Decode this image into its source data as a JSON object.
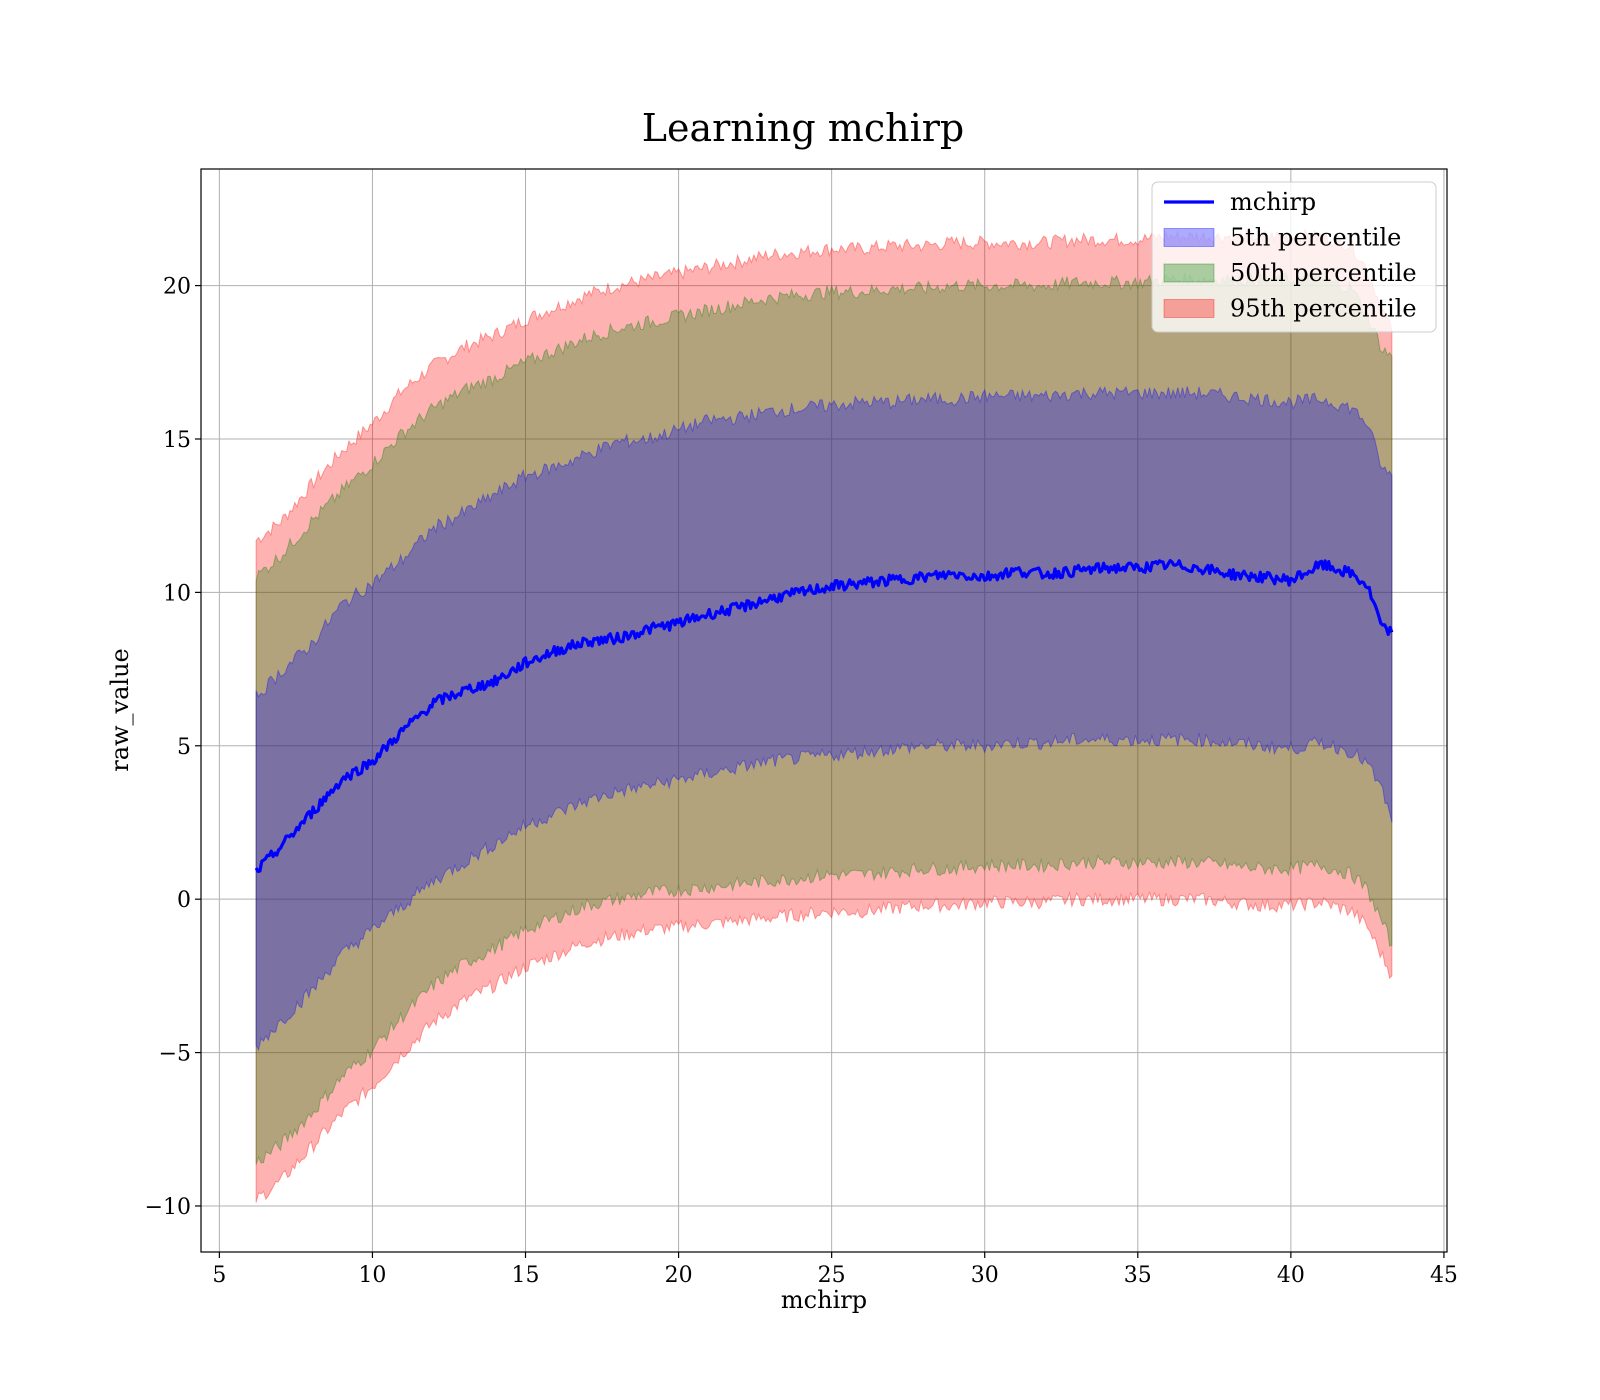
{
  "chart_data": {
    "type": "area",
    "title": "Learning mchirp",
    "xlabel": "mchirp",
    "ylabel": "raw_value",
    "xlim": [
      4.4,
      45.1
    ],
    "ylim": [
      -11.5,
      23.8
    ],
    "xticks": [
      5,
      10,
      15,
      20,
      25,
      30,
      35,
      40,
      45
    ],
    "xtick_labels": [
      "5",
      "10",
      "15",
      "20",
      "25",
      "30",
      "35",
      "40",
      "45"
    ],
    "yticks": [
      -10,
      -5,
      0,
      5,
      10,
      15,
      20
    ],
    "ytick_labels": [
      "−10",
      "−5",
      "0",
      "5",
      "10",
      "15",
      "20"
    ],
    "grid": true,
    "legend_position": "top-right",
    "x": [
      6.2,
      7,
      8,
      9,
      10,
      11,
      12,
      13,
      14,
      15,
      16,
      17,
      18,
      19,
      20,
      21,
      22,
      23,
      24,
      25,
      26,
      27,
      28,
      29,
      30,
      31,
      32,
      33,
      34,
      35,
      36,
      37,
      38,
      39,
      40,
      41,
      42,
      42.5,
      43,
      43.3
    ],
    "series": [
      {
        "name": "mchirp",
        "kind": "line",
        "color": "#0000ff",
        "values": [
          0.9,
          1.7,
          2.8,
          3.9,
          4.5,
          5.5,
          6.4,
          6.8,
          7.1,
          7.7,
          8.1,
          8.4,
          8.5,
          8.8,
          9.0,
          9.3,
          9.5,
          9.8,
          10.0,
          10.2,
          10.3,
          10.4,
          10.5,
          10.6,
          10.5,
          10.7,
          10.6,
          10.7,
          10.8,
          10.8,
          10.9,
          10.8,
          10.6,
          10.5,
          10.4,
          10.9,
          10.6,
          10.2,
          8.8,
          8.7
        ]
      },
      {
        "name": "5th percentile",
        "kind": "band",
        "color": "#0000ff",
        "upper": [
          6.6,
          7.4,
          8.3,
          9.6,
          10.3,
          11.1,
          12.1,
          12.6,
          13.2,
          13.8,
          14.1,
          14.5,
          14.9,
          15.0,
          15.3,
          15.6,
          15.7,
          15.9,
          16.0,
          16.1,
          16.2,
          16.2,
          16.3,
          16.3,
          16.4,
          16.4,
          16.4,
          16.5,
          16.5,
          16.5,
          16.5,
          16.5,
          16.4,
          16.3,
          16.2,
          16.3,
          16.0,
          15.5,
          14.0,
          13.8
        ],
        "lower": [
          -4.8,
          -4.0,
          -3.0,
          -1.8,
          -1.0,
          -0.2,
          0.6,
          1.2,
          1.8,
          2.4,
          2.8,
          3.2,
          3.5,
          3.7,
          3.9,
          4.1,
          4.3,
          4.5,
          4.6,
          4.7,
          4.8,
          4.9,
          5.0,
          5.0,
          5.0,
          5.1,
          5.1,
          5.2,
          5.2,
          5.2,
          5.2,
          5.2,
          5.1,
          5.0,
          4.9,
          5.1,
          4.8,
          4.4,
          3.5,
          2.5
        ]
      },
      {
        "name": "50th percentile",
        "kind": "band",
        "color": "#008000",
        "upper": [
          10.5,
          11.2,
          12.3,
          13.3,
          14.2,
          15.2,
          16.0,
          16.6,
          17.0,
          17.5,
          17.9,
          18.3,
          18.6,
          18.8,
          19.0,
          19.2,
          19.4,
          19.6,
          19.7,
          19.8,
          19.8,
          19.9,
          19.9,
          20.0,
          20.0,
          20.0,
          20.0,
          20.1,
          20.1,
          20.1,
          20.2,
          20.2,
          20.2,
          20.2,
          20.2,
          20.2,
          19.9,
          19.0,
          17.9,
          17.7
        ],
        "lower": [
          -8.6,
          -8.0,
          -7.0,
          -5.8,
          -4.9,
          -3.8,
          -2.8,
          -2.1,
          -1.6,
          -1.0,
          -0.6,
          -0.2,
          0.0,
          0.2,
          0.3,
          0.4,
          0.5,
          0.6,
          0.7,
          0.8,
          0.8,
          0.9,
          1.0,
          1.0,
          1.1,
          1.1,
          1.1,
          1.2,
          1.2,
          1.2,
          1.2,
          1.2,
          1.1,
          1.0,
          1.0,
          1.1,
          0.8,
          0.3,
          -0.8,
          -1.5
        ]
      },
      {
        "name": "95th percentile",
        "kind": "band",
        "color": "#ff0000",
        "upper": [
          11.7,
          12.3,
          13.5,
          14.6,
          15.5,
          16.6,
          17.4,
          18.0,
          18.4,
          18.9,
          19.3,
          19.7,
          20.0,
          20.2,
          20.4,
          20.6,
          20.8,
          21.0,
          21.1,
          21.2,
          21.2,
          21.3,
          21.3,
          21.4,
          21.4,
          21.4,
          21.4,
          21.5,
          21.5,
          21.5,
          21.6,
          21.6,
          21.6,
          21.6,
          21.6,
          21.6,
          21.3,
          20.5,
          19.2,
          18.5
        ],
        "lower": [
          -9.8,
          -9.2,
          -8.1,
          -7.0,
          -6.1,
          -5.0,
          -4.0,
          -3.3,
          -2.8,
          -2.2,
          -1.8,
          -1.4,
          -1.2,
          -1.0,
          -0.9,
          -0.8,
          -0.7,
          -0.6,
          -0.5,
          -0.4,
          -0.4,
          -0.3,
          -0.2,
          -0.2,
          -0.1,
          -0.1,
          -0.1,
          0.0,
          0.0,
          0.0,
          0.0,
          0.0,
          -0.1,
          -0.2,
          -0.2,
          -0.1,
          -0.4,
          -0.9,
          -1.9,
          -2.5
        ]
      }
    ]
  }
}
